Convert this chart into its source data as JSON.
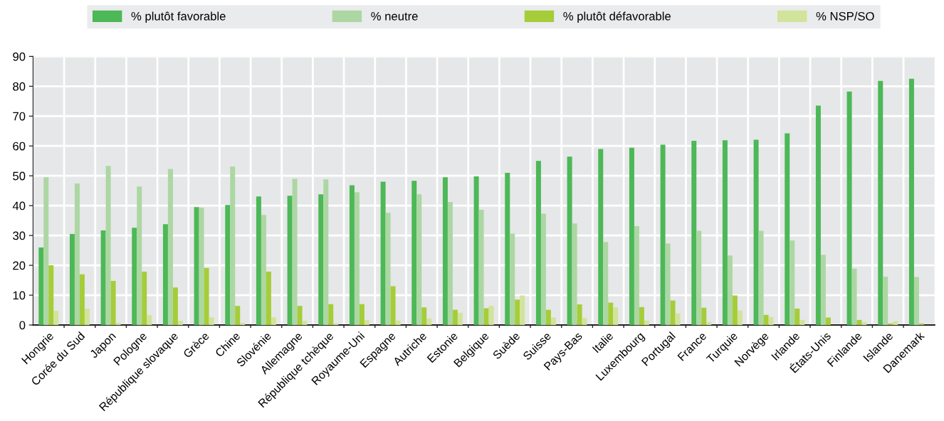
{
  "chart_data": {
    "type": "bar",
    "categories": [
      "Hongrie",
      "Corée du Sud",
      "Japon",
      "Pologne",
      "République slovaque",
      "Grèce",
      "Chine",
      "Slovénie",
      "Allemagne",
      "République tchèque",
      "Royaume-Uni",
      "Espagne",
      "Autriche",
      "Estonie",
      "Belgique",
      "Suède",
      "Suisse",
      "Pays-Bas",
      "Italie",
      "Luxembourg",
      "Portugal",
      "France",
      "Turquie",
      "Norvège",
      "Irlande",
      "États-Unis",
      "Finlande",
      "Islande",
      "Danemark"
    ],
    "series": [
      {
        "name": "% plutôt favorable",
        "color": "#4cb857",
        "values": [
          26,
          30.5,
          31.7,
          32.6,
          33.8,
          39.5,
          40.2,
          43.1,
          43.3,
          43.8,
          46.8,
          48,
          48.3,
          49.5,
          49.8,
          51,
          55,
          56.4,
          59,
          59.4,
          60.4,
          61.7,
          61.9,
          62.1,
          64.2,
          73.5,
          78.2,
          81.8,
          82.5
        ]
      },
      {
        "name": "% neutre",
        "color": "#acd7a3",
        "values": [
          49.5,
          47.4,
          53.3,
          46.4,
          52.3,
          39.3,
          53.1,
          36.9,
          49,
          48.8,
          44.5,
          37.6,
          43.8,
          41.2,
          38.6,
          30.6,
          37.3,
          34,
          27.8,
          33.1,
          27.3,
          31.6,
          23.3,
          31.6,
          28.3,
          23.5,
          18.9,
          16.2,
          16.1
        ]
      },
      {
        "name": "% plutôt défavorable",
        "color": "#a5cd39",
        "values": [
          20,
          17,
          14.8,
          17.9,
          12.6,
          19.1,
          6.4,
          17.9,
          6.4,
          7,
          7,
          13,
          5.9,
          5.1,
          5.6,
          8.5,
          5.1,
          6.9,
          7.5,
          6,
          8.2,
          5.8,
          9.9,
          3.4,
          5.5,
          2.5,
          1.7,
          0.5,
          0.5
        ]
      },
      {
        "name": "% NSP/SO",
        "color": "#d2e39b",
        "values": [
          4.8,
          5.5,
          0.7,
          3.3,
          1.4,
          2.6,
          0.7,
          2.6,
          1.4,
          0.5,
          1.7,
          1.5,
          2.2,
          4.1,
          6.4,
          9.9,
          2.5,
          2.4,
          5.9,
          1.5,
          3.9,
          1,
          4.9,
          2.7,
          1.7,
          null,
          1,
          1.3,
          null
        ]
      }
    ],
    "ylim": [
      0,
      90
    ],
    "yticks": [
      0,
      10,
      20,
      30,
      40,
      50,
      60,
      70,
      80,
      90
    ],
    "grid": true,
    "legend": "top"
  }
}
